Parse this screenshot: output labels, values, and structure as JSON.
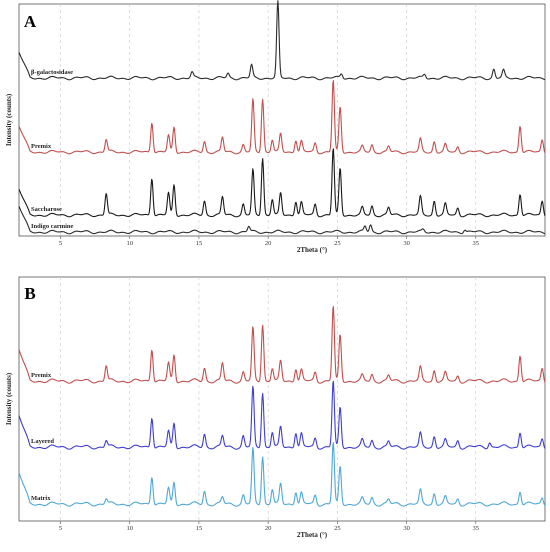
{
  "chart_data": [
    {
      "type": "line",
      "panel_label": "A",
      "xlabel": "2Theta (°)",
      "ylabel": "Intensity (counts)",
      "xlim": [
        2,
        40
      ],
      "xticks": [
        5,
        10,
        15,
        20,
        25,
        30,
        35
      ],
      "grid": "vertical dashed",
      "series": [
        {
          "name": "β-galactosidase",
          "color": "#2b2b2b",
          "baseline": 0.8,
          "peaks": [
            [
              14.5,
              0.15
            ],
            [
              17.1,
              0.12
            ],
            [
              18.8,
              0.35
            ],
            [
              20.7,
              2.1
            ],
            [
              25.3,
              0.12
            ],
            [
              31.3,
              0.1
            ],
            [
              36.3,
              0.25
            ],
            [
              37.0,
              0.2
            ]
          ]
        },
        {
          "name": "Premix",
          "color": "#c0504d",
          "baseline": 0.45,
          "peaks": [
            [
              8.3,
              0.35
            ],
            [
              11.6,
              0.85
            ],
            [
              12.8,
              0.45
            ],
            [
              13.2,
              0.7
            ],
            [
              15.4,
              0.3
            ],
            [
              16.7,
              0.4
            ],
            [
              18.2,
              0.2
            ],
            [
              18.9,
              1.45
            ],
            [
              19.6,
              1.5
            ],
            [
              20.3,
              0.35
            ],
            [
              20.9,
              0.5
            ],
            [
              22.0,
              0.35
            ],
            [
              22.4,
              0.3
            ],
            [
              23.4,
              0.25
            ],
            [
              24.7,
              2.0
            ],
            [
              25.2,
              1.25
            ],
            [
              26.8,
              0.15
            ],
            [
              27.5,
              0.2
            ],
            [
              28.7,
              0.15
            ],
            [
              31.0,
              0.35
            ],
            [
              32.0,
              0.3
            ],
            [
              32.8,
              0.2
            ],
            [
              33.7,
              0.15
            ],
            [
              38.2,
              0.75
            ],
            [
              39.8,
              0.35
            ]
          ]
        },
        {
          "name": "Saccharose",
          "color": "#1a1a1a",
          "baseline": 0.3,
          "peaks": [
            [
              8.3,
              0.6
            ],
            [
              11.6,
              1.05
            ],
            [
              12.8,
              0.6
            ],
            [
              13.2,
              0.85
            ],
            [
              15.4,
              0.4
            ],
            [
              16.7,
              0.5
            ],
            [
              18.2,
              0.3
            ],
            [
              18.9,
              1.25
            ],
            [
              19.6,
              1.6
            ],
            [
              20.3,
              0.45
            ],
            [
              20.9,
              0.6
            ],
            [
              22.0,
              0.4
            ],
            [
              22.4,
              0.35
            ],
            [
              23.4,
              0.3
            ],
            [
              24.7,
              1.85
            ],
            [
              25.2,
              1.3
            ],
            [
              26.8,
              0.2
            ],
            [
              27.5,
              0.25
            ],
            [
              28.7,
              0.2
            ],
            [
              31.0,
              0.5
            ],
            [
              32.0,
              0.4
            ],
            [
              32.8,
              0.3
            ],
            [
              33.7,
              0.2
            ],
            [
              38.2,
              0.6
            ],
            [
              39.8,
              0.4
            ]
          ]
        },
        {
          "name": "Indigo carmine",
          "color": "#2b2b2b",
          "baseline": 0.1,
          "peaks": [
            [
              18.6,
              0.15
            ],
            [
              27.0,
              0.15
            ],
            [
              27.4,
              0.2
            ],
            [
              34.2,
              0.08
            ],
            [
              31.2,
              0.06
            ]
          ]
        }
      ]
    },
    {
      "type": "line",
      "panel_label": "B",
      "xlabel": "2Theta (°)",
      "ylabel": "Intensity (counts)",
      "xlim": [
        2,
        40
      ],
      "xticks": [
        5,
        10,
        15,
        20,
        25,
        30,
        35
      ],
      "grid": "vertical dashed",
      "series": [
        {
          "name": "Premix",
          "color": "#c0504d",
          "baseline": 0.7,
          "peaks": [
            [
              8.3,
              0.35
            ],
            [
              11.6,
              0.75
            ],
            [
              12.8,
              0.4
            ],
            [
              13.2,
              0.6
            ],
            [
              15.4,
              0.3
            ],
            [
              16.7,
              0.4
            ],
            [
              18.2,
              0.2
            ],
            [
              18.9,
              1.2
            ],
            [
              19.6,
              1.3
            ],
            [
              20.3,
              0.3
            ],
            [
              20.9,
              0.45
            ],
            [
              22.0,
              0.3
            ],
            [
              22.4,
              0.25
            ],
            [
              23.4,
              0.2
            ],
            [
              24.7,
              1.7
            ],
            [
              25.2,
              1.05
            ],
            [
              26.8,
              0.12
            ],
            [
              27.5,
              0.15
            ],
            [
              28.7,
              0.12
            ],
            [
              31.0,
              0.3
            ],
            [
              32.0,
              0.25
            ],
            [
              32.8,
              0.18
            ],
            [
              33.7,
              0.12
            ],
            [
              38.2,
              0.6
            ],
            [
              39.8,
              0.3
            ]
          ]
        },
        {
          "name": "Layered",
          "color": "#3e3ecf",
          "baseline": 0.42,
          "peaks": [
            [
              8.3,
              0.15
            ],
            [
              11.6,
              0.7
            ],
            [
              12.8,
              0.35
            ],
            [
              13.2,
              0.55
            ],
            [
              15.4,
              0.3
            ],
            [
              16.7,
              0.25
            ],
            [
              18.2,
              0.25
            ],
            [
              18.9,
              1.35
            ],
            [
              19.6,
              1.25
            ],
            [
              20.3,
              0.35
            ],
            [
              20.9,
              0.45
            ],
            [
              22.0,
              0.35
            ],
            [
              22.4,
              0.3
            ],
            [
              23.4,
              0.2
            ],
            [
              24.7,
              1.5
            ],
            [
              25.2,
              0.9
            ],
            [
              26.8,
              0.15
            ],
            [
              27.5,
              0.15
            ],
            [
              28.7,
              0.12
            ],
            [
              31.0,
              0.3
            ],
            [
              32.0,
              0.25
            ],
            [
              32.8,
              0.15
            ],
            [
              33.7,
              0.15
            ],
            [
              36.0,
              0.12
            ],
            [
              38.2,
              0.35
            ],
            [
              39.8,
              0.2
            ]
          ]
        },
        {
          "name": "Matrix",
          "color": "#4fa8d8",
          "baseline": 0.1,
          "peaks": [
            [
              8.3,
              0.12
            ],
            [
              11.6,
              0.65
            ],
            [
              12.8,
              0.35
            ],
            [
              13.2,
              0.5
            ],
            [
              15.4,
              0.3
            ],
            [
              16.7,
              0.15
            ],
            [
              18.2,
              0.2
            ],
            [
              18.9,
              1.25
            ],
            [
              19.6,
              1.1
            ],
            [
              20.3,
              0.35
            ],
            [
              20.9,
              0.45
            ],
            [
              22.0,
              0.3
            ],
            [
              22.4,
              0.25
            ],
            [
              23.4,
              0.2
            ],
            [
              24.7,
              1.4
            ],
            [
              25.2,
              0.85
            ],
            [
              26.8,
              0.12
            ],
            [
              27.5,
              0.15
            ],
            [
              28.7,
              0.1
            ],
            [
              31.0,
              0.3
            ],
            [
              32.0,
              0.25
            ],
            [
              32.8,
              0.15
            ],
            [
              33.7,
              0.12
            ],
            [
              38.2,
              0.3
            ],
            [
              39.8,
              0.15
            ]
          ]
        }
      ]
    }
  ]
}
